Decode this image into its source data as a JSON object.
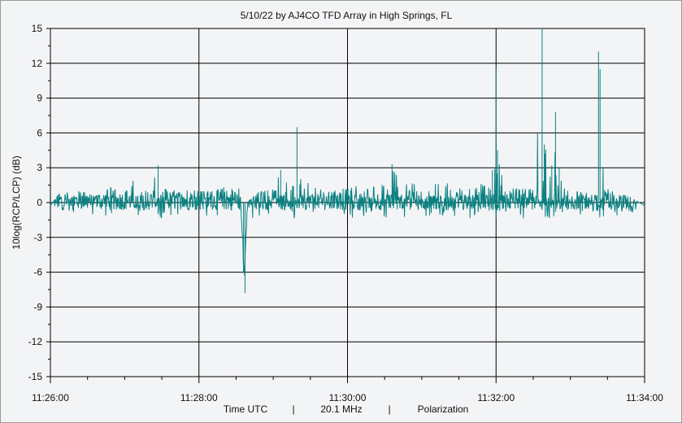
{
  "chart_data": {
    "type": "line",
    "title": "5/10/22  by  AJ4CO TFD Array  in  High Springs, FL",
    "xlabel": "Time UTC",
    "xlabel_parts": [
      "Time UTC",
      "|",
      "20.1 MHz",
      "|",
      "Polarization"
    ],
    "ylabel": "10log(RCP/LCP)  (dB)",
    "x_ticks": [
      "11:26:00",
      "11:28:00",
      "11:30:00",
      "11:32:00",
      "11:34:00"
    ],
    "x_range_minutes": [
      0,
      8
    ],
    "y_ticks": [
      15,
      12,
      9,
      6,
      3,
      0,
      -3,
      -6,
      -9,
      -12,
      -15
    ],
    "ylim": [
      -15,
      15
    ],
    "grid": true,
    "series_color": "#0a8080",
    "series": [
      {
        "values": [
          [
            0.0,
            -0.3
          ],
          [
            0.1,
            0.6
          ],
          [
            0.2,
            1.5
          ],
          [
            0.25,
            0.2
          ],
          [
            0.4,
            1.1
          ],
          [
            0.6,
            0.5
          ],
          [
            0.8,
            1.4
          ],
          [
            1.0,
            0.8
          ],
          [
            1.1,
            2.0
          ],
          [
            1.2,
            1.2
          ],
          [
            1.35,
            1.0
          ],
          [
            1.45,
            3.2
          ],
          [
            1.5,
            0.9
          ],
          [
            1.6,
            1.6
          ],
          [
            1.7,
            0.8
          ],
          [
            1.9,
            1.4
          ],
          [
            2.1,
            1.0
          ],
          [
            2.3,
            1.2
          ],
          [
            2.4,
            1.6
          ],
          [
            2.5,
            0.8
          ],
          [
            2.55,
            1.9
          ],
          [
            2.6,
            -6.0
          ],
          [
            2.62,
            -7.8
          ],
          [
            2.65,
            0.0
          ],
          [
            2.8,
            0.9
          ],
          [
            3.0,
            1.2
          ],
          [
            3.1,
            2.8
          ],
          [
            3.2,
            1.6
          ],
          [
            3.3,
            1.5
          ],
          [
            3.32,
            6.5
          ],
          [
            3.4,
            2.5
          ],
          [
            3.6,
            1.2
          ],
          [
            3.8,
            1.0
          ],
          [
            4.0,
            1.3
          ],
          [
            4.2,
            1.7
          ],
          [
            4.3,
            1.4
          ],
          [
            4.5,
            1.6
          ],
          [
            4.6,
            3.3
          ],
          [
            4.7,
            2.5
          ],
          [
            4.8,
            2.0
          ],
          [
            5.0,
            2.0
          ],
          [
            5.2,
            2.2
          ],
          [
            5.4,
            1.6
          ],
          [
            5.6,
            1.5
          ],
          [
            5.8,
            1.6
          ],
          [
            5.95,
            2.8
          ],
          [
            6.0,
            11.6
          ],
          [
            6.02,
            4.5
          ],
          [
            6.1,
            1.8
          ],
          [
            6.3,
            1.2
          ],
          [
            6.5,
            1.2
          ],
          [
            6.62,
            15.0
          ],
          [
            6.65,
            5.0
          ],
          [
            6.75,
            3.2
          ],
          [
            6.8,
            7.8
          ],
          [
            6.85,
            3.0
          ],
          [
            7.0,
            1.0
          ],
          [
            7.2,
            0.9
          ],
          [
            7.35,
            0.6
          ],
          [
            7.38,
            13.0
          ],
          [
            7.4,
            11.5
          ],
          [
            7.45,
            2.0
          ],
          [
            7.6,
            0.8
          ],
          [
            7.8,
            0.5
          ],
          [
            8.0,
            -0.3
          ]
        ]
      }
    ]
  }
}
